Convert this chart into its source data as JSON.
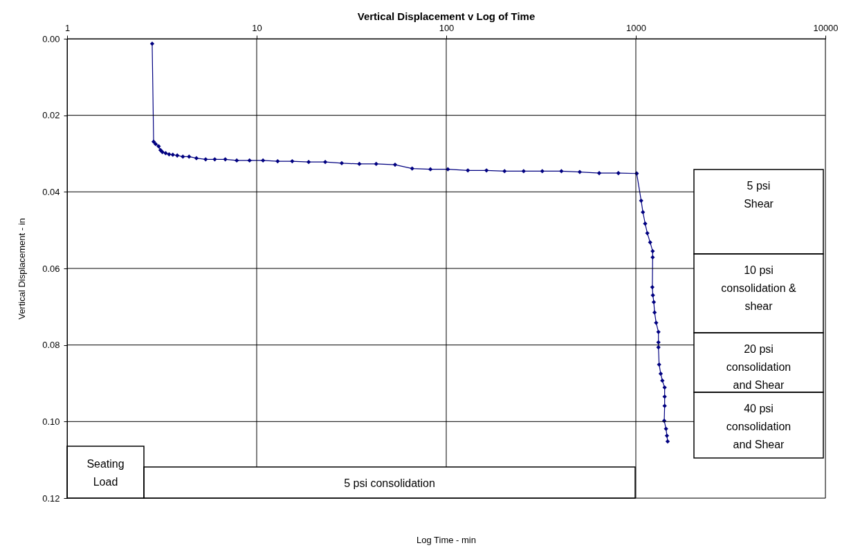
{
  "chart_data": {
    "type": "line",
    "title": "Vertical Displacement v Log of Time",
    "xlabel": "Log Time - min",
    "ylabel": "Vertical Displacement - in",
    "log": "x",
    "grid": true,
    "marker": "diamond",
    "line_style": "solid",
    "xlim": [
      1,
      10000
    ],
    "xticks": [
      1,
      10,
      100,
      1000,
      10000
    ],
    "ylim": [
      0.12,
      0
    ],
    "yticks": [
      {
        "value": 0,
        "label": "0.00"
      },
      {
        "value": 0.02,
        "label": "0.02"
      },
      {
        "value": 0.04,
        "label": "0.04"
      },
      {
        "value": 0.06,
        "label": "0.06"
      },
      {
        "value": 0.08,
        "label": "0.08"
      },
      {
        "value": 0.1,
        "label": "0.10"
      },
      {
        "value": 0.12,
        "label": "0.12"
      }
    ],
    "annotations": [
      "Seating\nLoad",
      "5 psi consolidation",
      "5 psi\nShear",
      "10 psi\nconsolidation &\nshear",
      "20 psi\nconsolidation\nand Shear",
      "40 psi\nconsolidation\nand Shear"
    ],
    "series": [
      {
        "color": "#000080",
        "x": [
          2.81,
          2.86,
          2.93,
          3.04,
          3.11,
          3.18,
          3.31,
          3.45,
          3.61,
          3.81,
          4.08,
          4.4,
          4.81,
          5.38,
          6.01,
          6.83,
          7.85,
          9.17,
          10.8,
          12.9,
          15.4,
          18.8,
          23.0,
          28.1,
          34.8,
          42.7,
          53.7,
          66.1,
          82.5,
          102,
          130,
          163,
          203,
          256,
          321,
          405,
          506,
          641,
          809,
          1011,
          1067,
          1090,
          1120,
          1150,
          1190,
          1227,
          1227,
          1222,
          1230,
          1244,
          1256,
          1280,
          1316,
          1316,
          1316,
          1327,
          1353,
          1380,
          1419,
          1419,
          1419,
          1412,
          1443,
          1459,
          1472
        ],
        "values": [
          0.0013,
          0.0269,
          0.0275,
          0.0281,
          0.0291,
          0.0296,
          0.0299,
          0.0302,
          0.0303,
          0.0305,
          0.0308,
          0.0308,
          0.0312,
          0.0315,
          0.0315,
          0.0315,
          0.0318,
          0.0318,
          0.0318,
          0.032,
          0.032,
          0.0322,
          0.0322,
          0.0325,
          0.0327,
          0.0327,
          0.0329,
          0.0339,
          0.0341,
          0.0341,
          0.0344,
          0.0344,
          0.0346,
          0.0346,
          0.0346,
          0.0346,
          0.0348,
          0.0351,
          0.0351,
          0.0352,
          0.0423,
          0.0453,
          0.0483,
          0.0508,
          0.0532,
          0.0555,
          0.0571,
          0.0649,
          0.067,
          0.0688,
          0.0715,
          0.0742,
          0.0766,
          0.0793,
          0.0806,
          0.0851,
          0.0875,
          0.0893,
          0.0911,
          0.0935,
          0.0959,
          0.0998,
          0.1019,
          0.1037,
          0.1052
        ]
      }
    ]
  }
}
